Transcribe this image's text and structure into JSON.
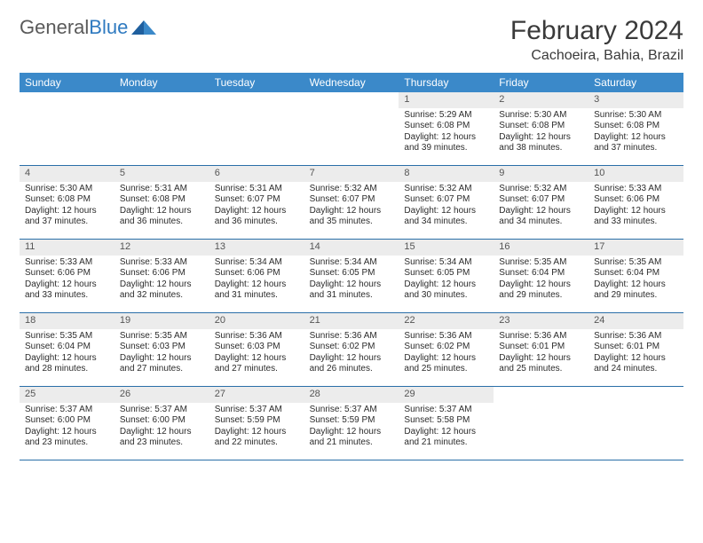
{
  "logo": {
    "text_gray": "General",
    "text_blue": "Blue"
  },
  "title": "February 2024",
  "location": "Cachoeira, Bahia, Brazil",
  "colors": {
    "header_bg": "#3b89c9",
    "header_text": "#ffffff",
    "daynum_bg": "#ececec",
    "week_border": "#2a6fa8",
    "logo_gray": "#5a5a5a",
    "logo_blue": "#2f7ac0",
    "body_text": "#2b2b2b"
  },
  "day_names": [
    "Sunday",
    "Monday",
    "Tuesday",
    "Wednesday",
    "Thursday",
    "Friday",
    "Saturday"
  ],
  "weeks": [
    [
      {
        "n": "",
        "sr": "",
        "ss": "",
        "d1": "",
        "d2": ""
      },
      {
        "n": "",
        "sr": "",
        "ss": "",
        "d1": "",
        "d2": ""
      },
      {
        "n": "",
        "sr": "",
        "ss": "",
        "d1": "",
        "d2": ""
      },
      {
        "n": "",
        "sr": "",
        "ss": "",
        "d1": "",
        "d2": ""
      },
      {
        "n": "1",
        "sr": "Sunrise: 5:29 AM",
        "ss": "Sunset: 6:08 PM",
        "d1": "Daylight: 12 hours",
        "d2": "and 39 minutes."
      },
      {
        "n": "2",
        "sr": "Sunrise: 5:30 AM",
        "ss": "Sunset: 6:08 PM",
        "d1": "Daylight: 12 hours",
        "d2": "and 38 minutes."
      },
      {
        "n": "3",
        "sr": "Sunrise: 5:30 AM",
        "ss": "Sunset: 6:08 PM",
        "d1": "Daylight: 12 hours",
        "d2": "and 37 minutes."
      }
    ],
    [
      {
        "n": "4",
        "sr": "Sunrise: 5:30 AM",
        "ss": "Sunset: 6:08 PM",
        "d1": "Daylight: 12 hours",
        "d2": "and 37 minutes."
      },
      {
        "n": "5",
        "sr": "Sunrise: 5:31 AM",
        "ss": "Sunset: 6:08 PM",
        "d1": "Daylight: 12 hours",
        "d2": "and 36 minutes."
      },
      {
        "n": "6",
        "sr": "Sunrise: 5:31 AM",
        "ss": "Sunset: 6:07 PM",
        "d1": "Daylight: 12 hours",
        "d2": "and 36 minutes."
      },
      {
        "n": "7",
        "sr": "Sunrise: 5:32 AM",
        "ss": "Sunset: 6:07 PM",
        "d1": "Daylight: 12 hours",
        "d2": "and 35 minutes."
      },
      {
        "n": "8",
        "sr": "Sunrise: 5:32 AM",
        "ss": "Sunset: 6:07 PM",
        "d1": "Daylight: 12 hours",
        "d2": "and 34 minutes."
      },
      {
        "n": "9",
        "sr": "Sunrise: 5:32 AM",
        "ss": "Sunset: 6:07 PM",
        "d1": "Daylight: 12 hours",
        "d2": "and 34 minutes."
      },
      {
        "n": "10",
        "sr": "Sunrise: 5:33 AM",
        "ss": "Sunset: 6:06 PM",
        "d1": "Daylight: 12 hours",
        "d2": "and 33 minutes."
      }
    ],
    [
      {
        "n": "11",
        "sr": "Sunrise: 5:33 AM",
        "ss": "Sunset: 6:06 PM",
        "d1": "Daylight: 12 hours",
        "d2": "and 33 minutes."
      },
      {
        "n": "12",
        "sr": "Sunrise: 5:33 AM",
        "ss": "Sunset: 6:06 PM",
        "d1": "Daylight: 12 hours",
        "d2": "and 32 minutes."
      },
      {
        "n": "13",
        "sr": "Sunrise: 5:34 AM",
        "ss": "Sunset: 6:06 PM",
        "d1": "Daylight: 12 hours",
        "d2": "and 31 minutes."
      },
      {
        "n": "14",
        "sr": "Sunrise: 5:34 AM",
        "ss": "Sunset: 6:05 PM",
        "d1": "Daylight: 12 hours",
        "d2": "and 31 minutes."
      },
      {
        "n": "15",
        "sr": "Sunrise: 5:34 AM",
        "ss": "Sunset: 6:05 PM",
        "d1": "Daylight: 12 hours",
        "d2": "and 30 minutes."
      },
      {
        "n": "16",
        "sr": "Sunrise: 5:35 AM",
        "ss": "Sunset: 6:04 PM",
        "d1": "Daylight: 12 hours",
        "d2": "and 29 minutes."
      },
      {
        "n": "17",
        "sr": "Sunrise: 5:35 AM",
        "ss": "Sunset: 6:04 PM",
        "d1": "Daylight: 12 hours",
        "d2": "and 29 minutes."
      }
    ],
    [
      {
        "n": "18",
        "sr": "Sunrise: 5:35 AM",
        "ss": "Sunset: 6:04 PM",
        "d1": "Daylight: 12 hours",
        "d2": "and 28 minutes."
      },
      {
        "n": "19",
        "sr": "Sunrise: 5:35 AM",
        "ss": "Sunset: 6:03 PM",
        "d1": "Daylight: 12 hours",
        "d2": "and 27 minutes."
      },
      {
        "n": "20",
        "sr": "Sunrise: 5:36 AM",
        "ss": "Sunset: 6:03 PM",
        "d1": "Daylight: 12 hours",
        "d2": "and 27 minutes."
      },
      {
        "n": "21",
        "sr": "Sunrise: 5:36 AM",
        "ss": "Sunset: 6:02 PM",
        "d1": "Daylight: 12 hours",
        "d2": "and 26 minutes."
      },
      {
        "n": "22",
        "sr": "Sunrise: 5:36 AM",
        "ss": "Sunset: 6:02 PM",
        "d1": "Daylight: 12 hours",
        "d2": "and 25 minutes."
      },
      {
        "n": "23",
        "sr": "Sunrise: 5:36 AM",
        "ss": "Sunset: 6:01 PM",
        "d1": "Daylight: 12 hours",
        "d2": "and 25 minutes."
      },
      {
        "n": "24",
        "sr": "Sunrise: 5:36 AM",
        "ss": "Sunset: 6:01 PM",
        "d1": "Daylight: 12 hours",
        "d2": "and 24 minutes."
      }
    ],
    [
      {
        "n": "25",
        "sr": "Sunrise: 5:37 AM",
        "ss": "Sunset: 6:00 PM",
        "d1": "Daylight: 12 hours",
        "d2": "and 23 minutes."
      },
      {
        "n": "26",
        "sr": "Sunrise: 5:37 AM",
        "ss": "Sunset: 6:00 PM",
        "d1": "Daylight: 12 hours",
        "d2": "and 23 minutes."
      },
      {
        "n": "27",
        "sr": "Sunrise: 5:37 AM",
        "ss": "Sunset: 5:59 PM",
        "d1": "Daylight: 12 hours",
        "d2": "and 22 minutes."
      },
      {
        "n": "28",
        "sr": "Sunrise: 5:37 AM",
        "ss": "Sunset: 5:59 PM",
        "d1": "Daylight: 12 hours",
        "d2": "and 21 minutes."
      },
      {
        "n": "29",
        "sr": "Sunrise: 5:37 AM",
        "ss": "Sunset: 5:58 PM",
        "d1": "Daylight: 12 hours",
        "d2": "and 21 minutes."
      },
      {
        "n": "",
        "sr": "",
        "ss": "",
        "d1": "",
        "d2": ""
      },
      {
        "n": "",
        "sr": "",
        "ss": "",
        "d1": "",
        "d2": ""
      }
    ]
  ]
}
